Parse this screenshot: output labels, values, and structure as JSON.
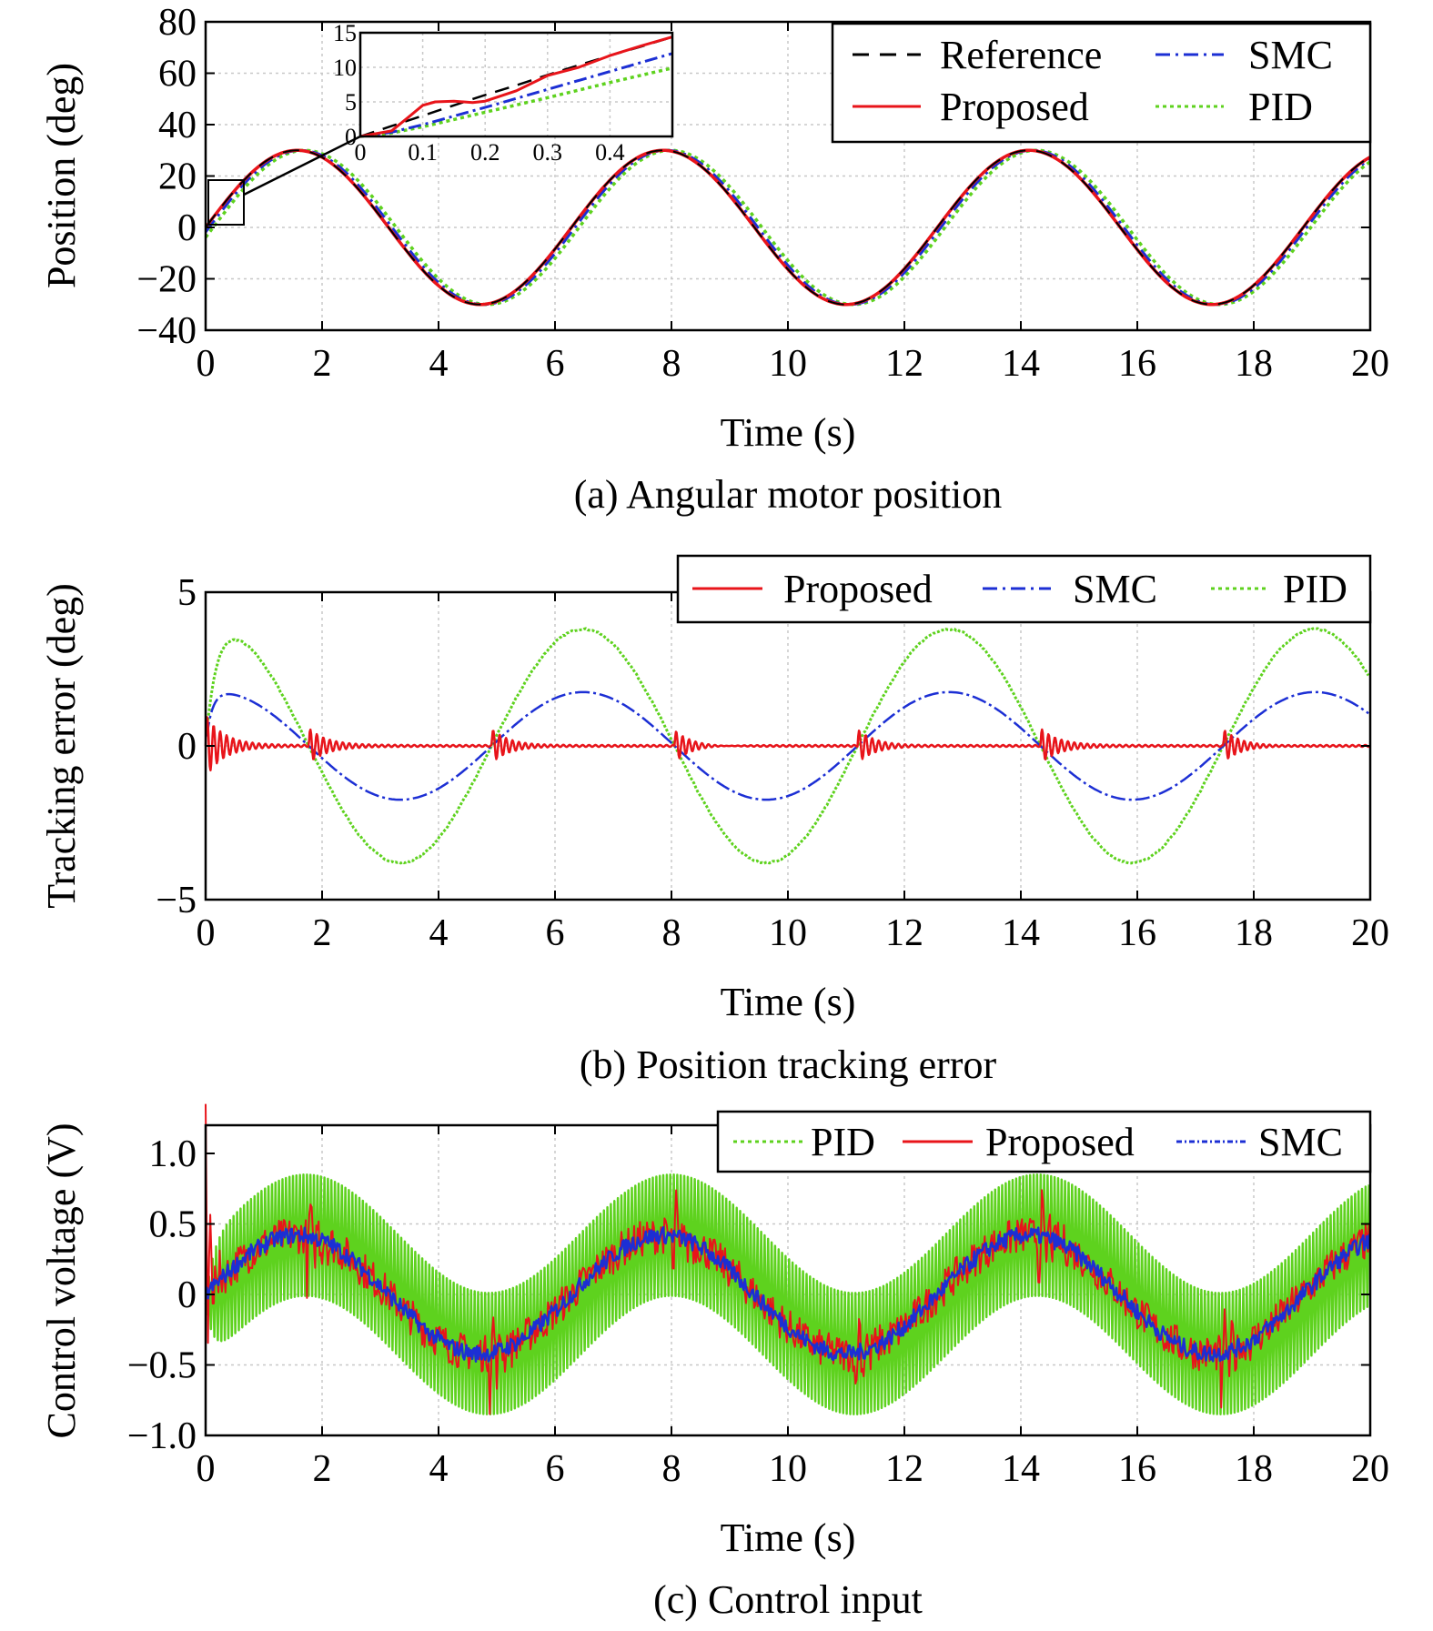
{
  "colors": {
    "reference": "#000000",
    "proposed": "#e8141a",
    "smc": "#1c2fd4",
    "pid": "#5ed21e"
  },
  "chart_data": [
    {
      "id": "a",
      "type": "line",
      "caption": "(a) Angular motor position",
      "xlabel": "Time (s)",
      "ylabel": "Position (deg)",
      "xlim": [
        0,
        20
      ],
      "ylim": [
        -40,
        80
      ],
      "xticks": [
        "0",
        "2",
        "4",
        "6",
        "8",
        "10",
        "12",
        "14",
        "16",
        "18",
        "20"
      ],
      "yticks": [
        "−40",
        "−20",
        "0",
        "20",
        "40",
        "60",
        "80"
      ],
      "grid": true,
      "legend": {
        "placement": "top-right",
        "columns": 2,
        "order": [
          "Reference",
          "SMC",
          "Proposed",
          "PID"
        ]
      },
      "series": [
        {
          "name": "Reference",
          "style": "dashed",
          "signal": "30 sin(t)",
          "x_range": [
            0,
            20
          ]
        },
        {
          "name": "Proposed",
          "style": "solid",
          "signal": "30 sin(t), overlaps reference",
          "x_range": [
            0,
            20
          ]
        },
        {
          "name": "SMC",
          "style": "dash-dot",
          "signal": "30 sin(t) lagging by ~0.06 s",
          "x_range": [
            0,
            20
          ]
        },
        {
          "name": "PID",
          "style": "dotted",
          "signal": "30 sin(t) lagging by ~0.13 s",
          "x_range": [
            0,
            20
          ]
        }
      ],
      "inset": {
        "xlim": [
          0,
          0.5
        ],
        "ylim": [
          0,
          15
        ],
        "xticks": [
          "0",
          "0.1",
          "0.2",
          "0.3",
          "0.4"
        ],
        "yticks": [
          "0",
          "5",
          "10",
          "15"
        ],
        "zoom_region": {
          "x": [
            0,
            0.6
          ],
          "y": [
            0,
            18
          ]
        },
        "series": [
          {
            "name": "Reference",
            "x": [
              0,
              0.05,
              0.1,
              0.15,
              0.2,
              0.25,
              0.3,
              0.35,
              0.4,
              0.45,
              0.5
            ],
            "y": [
              0,
              1.5,
              3.0,
              4.5,
              6.0,
              7.4,
              8.9,
              10.3,
              11.7,
              13.0,
              14.4
            ]
          },
          {
            "name": "Proposed",
            "x": [
              0,
              0.05,
              0.08,
              0.1,
              0.12,
              0.15,
              0.18,
              0.2,
              0.25,
              0.3,
              0.35,
              0.4,
              0.45,
              0.5
            ],
            "y": [
              0,
              0.8,
              3.0,
              4.5,
              5.0,
              5.1,
              4.9,
              5.1,
              6.6,
              8.8,
              10.0,
              11.7,
              13.1,
              14.4
            ]
          },
          {
            "name": "SMC",
            "x": [
              0,
              0.05,
              0.1,
              0.2,
              0.3,
              0.4,
              0.5
            ],
            "y": [
              0,
              0.6,
              1.7,
              4.2,
              6.8,
              9.4,
              12.0
            ]
          },
          {
            "name": "PID",
            "x": [
              0,
              0.05,
              0.1,
              0.2,
              0.3,
              0.4,
              0.5
            ],
            "y": [
              0,
              0.5,
              1.4,
              3.5,
              5.6,
              7.8,
              9.9
            ]
          }
        ]
      }
    },
    {
      "id": "b",
      "type": "line",
      "caption": "(b) Position tracking error",
      "xlabel": "Time (s)",
      "ylabel": "Tracking error (deg)",
      "xlim": [
        0,
        20
      ],
      "ylim": [
        -5,
        5
      ],
      "xticks": [
        "0",
        "2",
        "4",
        "6",
        "8",
        "10",
        "12",
        "14",
        "16",
        "18",
        "20"
      ],
      "yticks": [
        "−5",
        "0",
        "5"
      ],
      "grid": true,
      "legend": {
        "placement": "top-right",
        "columns": 3,
        "order": [
          "Proposed",
          "SMC",
          "PID"
        ]
      },
      "series": [
        {
          "name": "Proposed",
          "style": "solid",
          "signal": "near 0 with decaying oscillations (~0.6 deg) after each half-period switch",
          "x_range": [
            0,
            20
          ]
        },
        {
          "name": "SMC",
          "style": "dash-dot",
          "signal": "~1.75 cos(t), peaks ~1.8 deg",
          "x_range": [
            0,
            20
          ]
        },
        {
          "name": "PID",
          "style": "dotted",
          "signal": "~3.8 cos(t), peaks ~3.85 deg",
          "x_range": [
            0,
            20
          ]
        }
      ]
    },
    {
      "id": "c",
      "type": "line",
      "caption": "(c) Control input",
      "xlabel": "Time (s)",
      "ylabel": "Control voltage (V)",
      "xlim": [
        0,
        20
      ],
      "ylim": [
        -1.0,
        1.2
      ],
      "xticks": [
        "0",
        "2",
        "4",
        "6",
        "8",
        "10",
        "12",
        "14",
        "16",
        "18",
        "20"
      ],
      "yticks": [
        "−1.0",
        "−0.5",
        "0",
        "0.5",
        "1.0"
      ],
      "grid": true,
      "legend": {
        "placement": "top-right",
        "columns": 3,
        "order": [
          "PID",
          "Proposed",
          "SMC"
        ]
      },
      "series": [
        {
          "name": "PID",
          "style": "dotted",
          "signal": "~0.42 sin(t) with ±0.43 V chattering band",
          "x_range": [
            0,
            20
          ]
        },
        {
          "name": "Proposed",
          "style": "solid",
          "signal": "~0.42 sin(t) with ~0.1 V noise, spike to ~1.07 V near t=0",
          "x_range": [
            0,
            20
          ]
        },
        {
          "name": "SMC",
          "style": "dash-dot",
          "signal": "~0.42 sin(t) with small noise",
          "x_range": [
            0,
            20
          ]
        }
      ]
    }
  ]
}
